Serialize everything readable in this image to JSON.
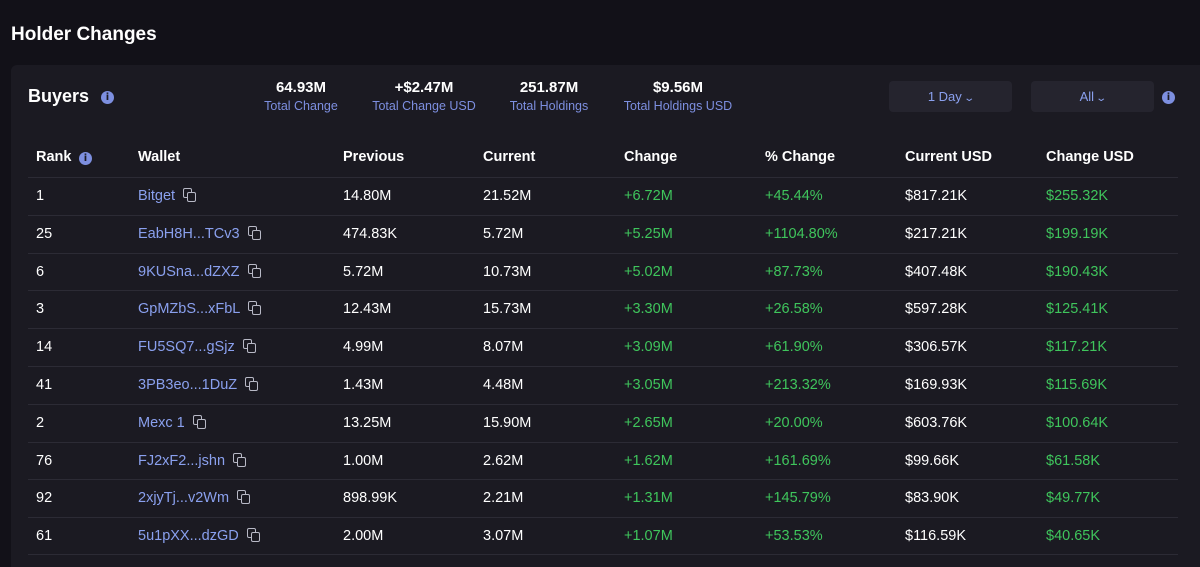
{
  "title": "Holder Changes",
  "section": {
    "label": "Buyers",
    "info_icon": "info-icon"
  },
  "stats": [
    {
      "value": "64.93M",
      "label": "Total Change"
    },
    {
      "value": "+$2.47M",
      "label": "Total Change USD"
    },
    {
      "value": "251.87M",
      "label": "Total Holdings"
    },
    {
      "value": "$9.56M",
      "label": "Total Holdings USD"
    }
  ],
  "filters": {
    "period": "1 Day",
    "scope": "All"
  },
  "colors": {
    "background": "#121118",
    "panel": "#1b1a22",
    "accent": "#7d8fe0",
    "positive": "#3fc55c"
  },
  "table": {
    "columns": [
      "Rank",
      "Wallet",
      "Previous",
      "Current",
      "Change",
      "% Change",
      "Current USD",
      "Change USD"
    ],
    "rows": [
      {
        "rank": "1",
        "wallet": "Bitget",
        "previous": "14.80M",
        "current": "21.52M",
        "change": "+6.72M",
        "pct": "+45.44%",
        "current_usd": "$817.21K",
        "change_usd": "$255.32K"
      },
      {
        "rank": "25",
        "wallet": "EabH8H...TCv3",
        "previous": "474.83K",
        "current": "5.72M",
        "change": "+5.25M",
        "pct": "+1104.80%",
        "current_usd": "$217.21K",
        "change_usd": "$199.19K"
      },
      {
        "rank": "6",
        "wallet": "9KUSna...dZXZ",
        "previous": "5.72M",
        "current": "10.73M",
        "change": "+5.02M",
        "pct": "+87.73%",
        "current_usd": "$407.48K",
        "change_usd": "$190.43K"
      },
      {
        "rank": "3",
        "wallet": "GpMZbS...xFbL",
        "previous": "12.43M",
        "current": "15.73M",
        "change": "+3.30M",
        "pct": "+26.58%",
        "current_usd": "$597.28K",
        "change_usd": "$125.41K"
      },
      {
        "rank": "14",
        "wallet": "FU5SQ7...gSjz",
        "previous": "4.99M",
        "current": "8.07M",
        "change": "+3.09M",
        "pct": "+61.90%",
        "current_usd": "$306.57K",
        "change_usd": "$117.21K"
      },
      {
        "rank": "41",
        "wallet": "3PB3eo...1DuZ",
        "previous": "1.43M",
        "current": "4.48M",
        "change": "+3.05M",
        "pct": "+213.32%",
        "current_usd": "$169.93K",
        "change_usd": "$115.69K"
      },
      {
        "rank": "2",
        "wallet": "Mexc 1",
        "previous": "13.25M",
        "current": "15.90M",
        "change": "+2.65M",
        "pct": "+20.00%",
        "current_usd": "$603.76K",
        "change_usd": "$100.64K"
      },
      {
        "rank": "76",
        "wallet": "FJ2xF2...jshn",
        "previous": "1.00M",
        "current": "2.62M",
        "change": "+1.62M",
        "pct": "+161.69%",
        "current_usd": "$99.66K",
        "change_usd": "$61.58K"
      },
      {
        "rank": "92",
        "wallet": "2xjyTj...v2Wm",
        "previous": "898.99K",
        "current": "2.21M",
        "change": "+1.31M",
        "pct": "+145.79%",
        "current_usd": "$83.90K",
        "change_usd": "$49.77K"
      },
      {
        "rank": "61",
        "wallet": "5u1pXX...dzGD",
        "previous": "2.00M",
        "current": "3.07M",
        "change": "+1.07M",
        "pct": "+53.53%",
        "current_usd": "$116.59K",
        "change_usd": "$40.65K"
      }
    ]
  }
}
